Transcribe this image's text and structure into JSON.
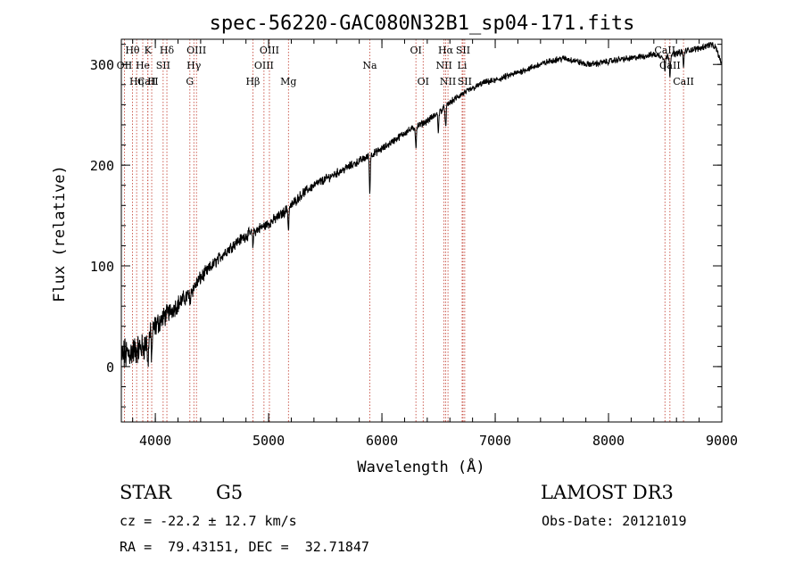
{
  "chart_data": {
    "type": "line",
    "title": "spec-56220-GAC080N32B1_sp04-171.fits",
    "xlabel": "Wavelength (Å)",
    "ylabel": "Flux (relative)",
    "xlim": [
      3700,
      9000
    ],
    "ylim": [
      -55,
      325
    ],
    "x_ticks": [
      4000,
      5000,
      6000,
      7000,
      8000,
      9000
    ],
    "y_ticks": [
      0,
      100,
      200,
      300
    ],
    "spectral_lines": [
      {
        "label": "Hθ",
        "wavelength": 3798,
        "row": 0
      },
      {
        "label": "OII",
        "wavelength": 3727,
        "row": 1
      },
      {
        "label": "CaII",
        "wavelength": 3934,
        "row": 2
      },
      {
        "label": "K",
        "wavelength": 3934,
        "row": 0
      },
      {
        "label": "He",
        "wavelength": 3889,
        "row": 1
      },
      {
        "label": "Hη",
        "wavelength": 3835,
        "row": 2
      },
      {
        "label": "SII",
        "wavelength": 4069,
        "row": 1
      },
      {
        "label": "H",
        "wavelength": 3968,
        "row": 2
      },
      {
        "label": "Hδ",
        "wavelength": 4102,
        "row": 0
      },
      {
        "label": "OIII",
        "wavelength": 4363,
        "row": 0
      },
      {
        "label": "Hγ",
        "wavelength": 4340,
        "row": 1
      },
      {
        "label": "G",
        "wavelength": 4305,
        "row": 2
      },
      {
        "label": "Hβ",
        "wavelength": 4861,
        "row": 2
      },
      {
        "label": "OIII",
        "wavelength": 5007,
        "row": 0
      },
      {
        "label": "OIII",
        "wavelength": 4959,
        "row": 1
      },
      {
        "label": "Mg",
        "wavelength": 5175,
        "row": 2
      },
      {
        "label": "Na",
        "wavelength": 5893,
        "row": 1
      },
      {
        "label": "OI",
        "wavelength": 6300,
        "row": 0
      },
      {
        "label": "OI",
        "wavelength": 6364,
        "row": 2
      },
      {
        "label": "Hα",
        "wavelength": 6563,
        "row": 0
      },
      {
        "label": "NII",
        "wavelength": 6548,
        "row": 1
      },
      {
        "label": "NII",
        "wavelength": 6583,
        "row": 2
      },
      {
        "label": "SII",
        "wavelength": 6716,
        "row": 0
      },
      {
        "label": "Li",
        "wavelength": 6708,
        "row": 1
      },
      {
        "label": "SII",
        "wavelength": 6731,
        "row": 2
      },
      {
        "label": "CaII",
        "wavelength": 8498,
        "row": 0
      },
      {
        "label": "CaII",
        "wavelength": 8542,
        "row": 1
      },
      {
        "label": "CaII",
        "wavelength": 8662,
        "row": 2
      }
    ],
    "continuum_points": [
      [
        3700,
        10
      ],
      [
        3800,
        15
      ],
      [
        3900,
        20
      ],
      [
        4000,
        40
      ],
      [
        4100,
        52
      ],
      [
        4200,
        62
      ],
      [
        4300,
        72
      ],
      [
        4400,
        88
      ],
      [
        4500,
        100
      ],
      [
        4600,
        112
      ],
      [
        4700,
        122
      ],
      [
        4800,
        130
      ],
      [
        4900,
        136
      ],
      [
        5000,
        142
      ],
      [
        5100,
        150
      ],
      [
        5200,
        160
      ],
      [
        5300,
        172
      ],
      [
        5400,
        180
      ],
      [
        5500,
        186
      ],
      [
        5600,
        192
      ],
      [
        5700,
        198
      ],
      [
        5800,
        204
      ],
      [
        5900,
        210
      ],
      [
        6000,
        216
      ],
      [
        6100,
        224
      ],
      [
        6200,
        232
      ],
      [
        6300,
        238
      ],
      [
        6400,
        244
      ],
      [
        6500,
        252
      ],
      [
        6600,
        262
      ],
      [
        6700,
        270
      ],
      [
        6800,
        276
      ],
      [
        6900,
        282
      ],
      [
        7000,
        284
      ],
      [
        7100,
        288
      ],
      [
        7200,
        292
      ],
      [
        7300,
        296
      ],
      [
        7400,
        300
      ],
      [
        7500,
        304
      ],
      [
        7600,
        306
      ],
      [
        7700,
        304
      ],
      [
        7800,
        300
      ],
      [
        7900,
        301
      ],
      [
        8000,
        303
      ],
      [
        8100,
        305
      ],
      [
        8200,
        306
      ],
      [
        8300,
        308
      ],
      [
        8400,
        310
      ],
      [
        8500,
        307
      ],
      [
        8600,
        311
      ],
      [
        8700,
        314
      ],
      [
        8800,
        316
      ],
      [
        8900,
        320
      ],
      [
        8950,
        316
      ],
      [
        9000,
        300
      ]
    ],
    "absorption_dips": [
      [
        3934,
        28
      ],
      [
        3968,
        25
      ],
      [
        4305,
        10
      ],
      [
        4861,
        14
      ],
      [
        5175,
        22
      ],
      [
        5893,
        38
      ],
      [
        6300,
        20
      ],
      [
        6563,
        22
      ],
      [
        6498,
        18
      ],
      [
        8498,
        14
      ],
      [
        8542,
        20
      ],
      [
        8662,
        16
      ]
    ],
    "noise_amplitude": [
      [
        3700,
        14
      ],
      [
        4100,
        8
      ],
      [
        4500,
        5
      ],
      [
        5200,
        4
      ],
      [
        6000,
        3
      ],
      [
        7000,
        2.5
      ],
      [
        9000,
        2.5
      ]
    ]
  },
  "footer": {
    "object_class": "STAR",
    "subclass": "G5",
    "survey": "LAMOST DR3",
    "redshift": "cz = -22.2 ± 12.7 km/s",
    "obs_date": "Obs-Date: 20121019",
    "coords": "RA =  79.43151, DEC =  32.71847"
  }
}
